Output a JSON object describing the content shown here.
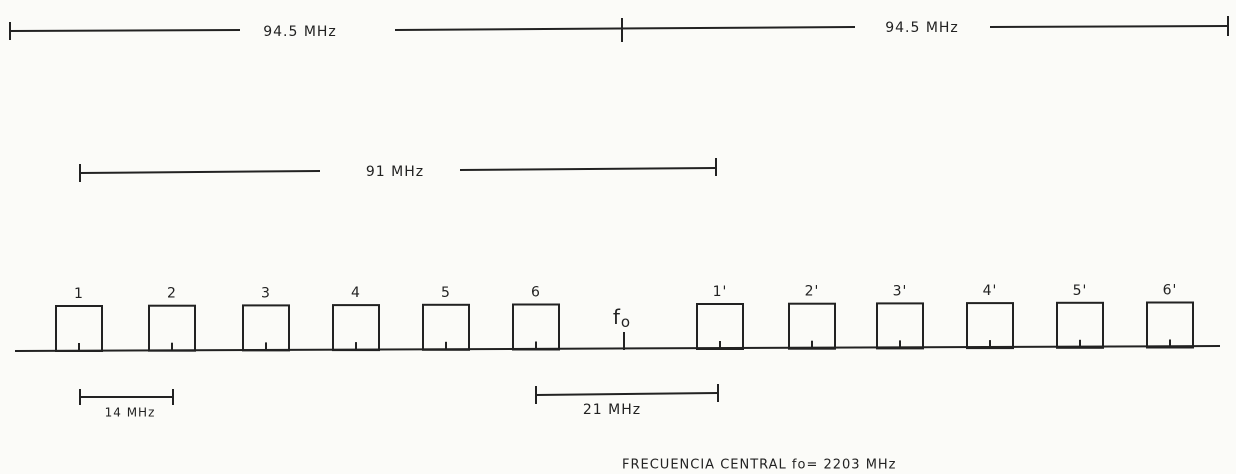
{
  "dimensions": {
    "half_left": "94.5 MHz",
    "half_right": "94.5 MHz",
    "span": "91 MHz",
    "channel_spacing": "14 MHz",
    "center_gap": "21 MHz"
  },
  "channels": {
    "lower": [
      "1",
      "2",
      "3",
      "4",
      "5",
      "6"
    ],
    "upper": [
      "1'",
      "2'",
      "3'",
      "4'",
      "5'",
      "6'"
    ]
  },
  "center": {
    "symbol": "f",
    "subscript": "o"
  },
  "footer": "FRECUENCIA CENTRAL  fo= 2203 MHz"
}
